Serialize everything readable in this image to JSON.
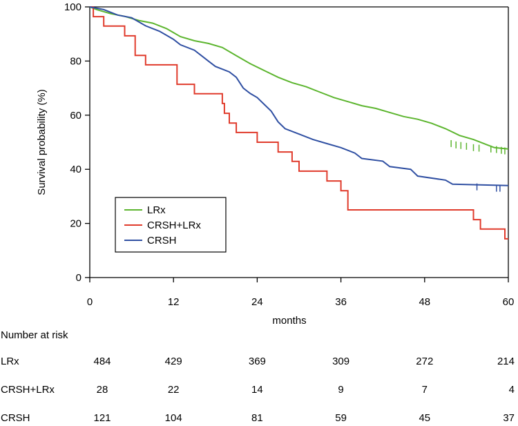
{
  "chart_data": {
    "type": "line",
    "subtype": "kaplan-meier",
    "ylabel": "Survival probability (%)",
    "xlabel": "months",
    "xlim": [
      0,
      60
    ],
    "ylim": [
      0,
      100
    ],
    "xticks": [
      0,
      12,
      24,
      36,
      48,
      60
    ],
    "yticks": [
      0,
      20,
      40,
      60,
      80,
      100
    ],
    "grid": false,
    "legend_position": "lower-left",
    "series": [
      {
        "name": "LRx",
        "color": "#5cb52e",
        "points": [
          [
            0,
            100
          ],
          [
            1,
            99
          ],
          [
            3,
            97.5
          ],
          [
            5,
            96.5
          ],
          [
            7,
            95
          ],
          [
            9,
            94
          ],
          [
            11,
            92
          ],
          [
            13,
            89
          ],
          [
            15,
            87.5
          ],
          [
            17,
            86.5
          ],
          [
            19,
            85
          ],
          [
            21,
            82
          ],
          [
            23,
            79
          ],
          [
            25,
            76.5
          ],
          [
            27,
            74
          ],
          [
            29,
            72
          ],
          [
            31,
            70.5
          ],
          [
            33,
            68.5
          ],
          [
            35,
            66.5
          ],
          [
            37,
            65
          ],
          [
            39,
            63.5
          ],
          [
            41,
            62.5
          ],
          [
            43,
            61
          ],
          [
            45,
            59.5
          ],
          [
            47,
            58.5
          ],
          [
            49,
            57
          ],
          [
            51,
            55
          ],
          [
            53,
            52.5
          ],
          [
            55,
            51
          ],
          [
            57,
            49
          ],
          [
            58,
            48
          ],
          [
            60,
            47.5
          ]
        ],
        "censored": [
          [
            51.8,
            49.5
          ],
          [
            52.5,
            49
          ],
          [
            53.2,
            48.8
          ],
          [
            54,
            48.5
          ],
          [
            55,
            48
          ],
          [
            55.8,
            47.8
          ],
          [
            57.5,
            47.5
          ],
          [
            58.3,
            47.3
          ],
          [
            59,
            47
          ],
          [
            59.5,
            46.8
          ]
        ]
      },
      {
        "name": "CRSH+LRx",
        "color": "#e03a2b",
        "points": [
          [
            0,
            100
          ],
          [
            0.5,
            100
          ],
          [
            0.5,
            96.4
          ],
          [
            2,
            96.4
          ],
          [
            2,
            92.9
          ],
          [
            5,
            92.9
          ],
          [
            5,
            89.3
          ],
          [
            6.5,
            89.3
          ],
          [
            6.5,
            82.1
          ],
          [
            8,
            82.1
          ],
          [
            8,
            78.6
          ],
          [
            12.5,
            78.6
          ],
          [
            12.5,
            71.4
          ],
          [
            15,
            71.4
          ],
          [
            15,
            67.9
          ],
          [
            19,
            67.9
          ],
          [
            19,
            64.3
          ],
          [
            19.3,
            64.3
          ],
          [
            19.3,
            60.7
          ],
          [
            20,
            60.7
          ],
          [
            20,
            57.1
          ],
          [
            21,
            57.1
          ],
          [
            21,
            53.6
          ],
          [
            24,
            53.6
          ],
          [
            24,
            50
          ],
          [
            27,
            50
          ],
          [
            27,
            46.4
          ],
          [
            29,
            46.4
          ],
          [
            29,
            42.9
          ],
          [
            30,
            42.9
          ],
          [
            30,
            39.3
          ],
          [
            34,
            39.3
          ],
          [
            34,
            35.7
          ],
          [
            36,
            35.7
          ],
          [
            36,
            32.1
          ],
          [
            37,
            32.1
          ],
          [
            37,
            25
          ],
          [
            55,
            25
          ],
          [
            55,
            21.4
          ],
          [
            56,
            21.4
          ],
          [
            56,
            17.9
          ],
          [
            59.5,
            17.9
          ],
          [
            59.5,
            14.3
          ],
          [
            60,
            14.3
          ]
        ],
        "censored": []
      },
      {
        "name": "CRSH",
        "color": "#2f4fa2",
        "points": [
          [
            0,
            100
          ],
          [
            2,
            99
          ],
          [
            4,
            97
          ],
          [
            6,
            96
          ],
          [
            8,
            93
          ],
          [
            10,
            91
          ],
          [
            12,
            88
          ],
          [
            13,
            86
          ],
          [
            15,
            84
          ],
          [
            16,
            82
          ],
          [
            17,
            80
          ],
          [
            18,
            78
          ],
          [
            20,
            76
          ],
          [
            21,
            74
          ],
          [
            22,
            70
          ],
          [
            23,
            68
          ],
          [
            24,
            66.5
          ],
          [
            25,
            64
          ],
          [
            26,
            61.5
          ],
          [
            27,
            57.5
          ],
          [
            28,
            55
          ],
          [
            30,
            53
          ],
          [
            32,
            51
          ],
          [
            34,
            49.5
          ],
          [
            36,
            48
          ],
          [
            38,
            46
          ],
          [
            39,
            44
          ],
          [
            42,
            43
          ],
          [
            43,
            41
          ],
          [
            46,
            40
          ],
          [
            47,
            37.5
          ],
          [
            51,
            36
          ],
          [
            52,
            34.5
          ],
          [
            60,
            34
          ]
        ],
        "censored": [
          [
            55.5,
            33.5
          ],
          [
            58.3,
            33
          ],
          [
            58.8,
            33
          ]
        ]
      }
    ]
  },
  "risk_table": {
    "header": "Number at risk",
    "rows": [
      {
        "label": "LRx",
        "values": [
          "484",
          "429",
          "369",
          "309",
          "272",
          "214"
        ]
      },
      {
        "label": "CRSH+LRx",
        "values": [
          "28",
          "22",
          "14",
          "9",
          "7",
          "4"
        ]
      },
      {
        "label": "CRSH",
        "values": [
          "121",
          "104",
          "81",
          "59",
          "45",
          "37"
        ]
      }
    ]
  }
}
